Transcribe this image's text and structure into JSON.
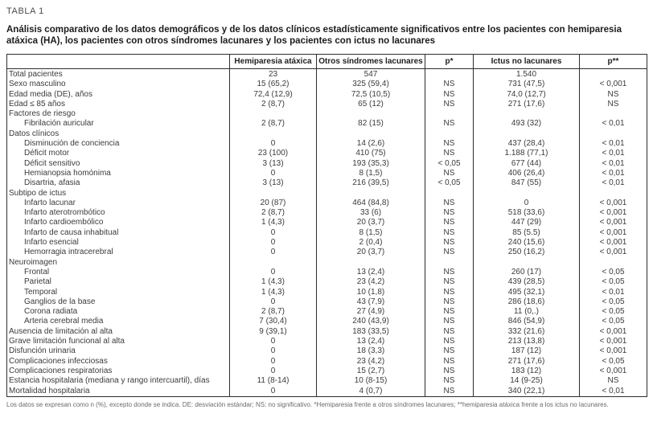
{
  "header": {
    "table_label": "TABLA 1",
    "title": "Análisis comparativo de los datos demográficos y de los datos clínicos estadísticamente significativos entre los pacientes con hemiparesia atáxica (HA), los pacientes con otros síndromes lacunares y los pacientes con ictus no lacunares"
  },
  "table": {
    "columns": [
      "",
      "Hemiparesia atáxica",
      "Otros síndromes lacunares",
      "p*",
      "Ictus no lacunares",
      "p**"
    ],
    "rows": [
      {
        "label": "Total pacientes",
        "indent": false,
        "values": [
          "23",
          "547",
          "",
          "1.540",
          ""
        ]
      },
      {
        "label": "Sexo masculino",
        "indent": false,
        "values": [
          "15 (65,2)",
          "325 (59,4)",
          "NS",
          "731 (47,5)",
          "< 0,001"
        ]
      },
      {
        "label": "Edad media (DE), años",
        "indent": false,
        "values": [
          "72,4 (12,9)",
          "72,5 (10,5)",
          "NS",
          "74,0 (12,7)",
          "NS"
        ]
      },
      {
        "label": "Edad ≤ 85 años",
        "indent": false,
        "values": [
          "2 (8,7)",
          "65 (12)",
          "NS",
          "271 (17,6)",
          "NS"
        ]
      },
      {
        "label": "Factores de riesgo",
        "indent": false,
        "values": [
          "",
          "",
          "",
          "",
          ""
        ]
      },
      {
        "label": "Fibrilación auricular",
        "indent": true,
        "values": [
          "2 (8,7)",
          "82 (15)",
          "NS",
          "493 (32)",
          "< 0,01"
        ]
      },
      {
        "label": "Datos clínicos",
        "indent": false,
        "values": [
          "",
          "",
          "",
          "",
          ""
        ]
      },
      {
        "label": "Disminución de conciencia",
        "indent": true,
        "values": [
          "0",
          "14 (2,6)",
          "NS",
          "437 (28,4)",
          "< 0,01"
        ]
      },
      {
        "label": "Déficit motor",
        "indent": true,
        "values": [
          "23 (100)",
          "410 (75)",
          "NS",
          "1.188 (77,1)",
          "< 0,01"
        ]
      },
      {
        "label": "Déficit sensitivo",
        "indent": true,
        "values": [
          "3 (13)",
          "193 (35,3)",
          "< 0,05",
          "677 (44)",
          "< 0,01"
        ]
      },
      {
        "label": "Hemianopsia homónima",
        "indent": true,
        "values": [
          "0",
          "8 (1,5)",
          "NS",
          "406 (26,4)",
          "< 0,01"
        ]
      },
      {
        "label": "Disartria, afasia",
        "indent": true,
        "values": [
          "3 (13)",
          "216 (39,5)",
          "< 0,05",
          "847 (55)",
          "< 0,01"
        ]
      },
      {
        "label": "Subtipo de ictus",
        "indent": false,
        "values": [
          "",
          "",
          "",
          "",
          ""
        ]
      },
      {
        "label": "Infarto lacunar",
        "indent": true,
        "values": [
          "20 (87)",
          "464 (84,8)",
          "NS",
          "0",
          "< 0,001"
        ]
      },
      {
        "label": "Infarto aterotrombótico",
        "indent": true,
        "values": [
          "2 (8,7)",
          "33 (6)",
          "NS",
          "518 (33,6)",
          "< 0,001"
        ]
      },
      {
        "label": "Infarto cardioembólico",
        "indent": true,
        "values": [
          "1 (4,3)",
          "20 (3,7)",
          "NS",
          "447 (29)",
          "< 0,001"
        ]
      },
      {
        "label": "Infarto de causa inhabitual",
        "indent": true,
        "values": [
          "0",
          "8 (1,5)",
          "NS",
          "85 (5.5)",
          "< 0,001"
        ]
      },
      {
        "label": "Infarto esencial",
        "indent": true,
        "values": [
          "0",
          "2 (0,4)",
          "NS",
          "240 (15,6)",
          "< 0,001"
        ]
      },
      {
        "label": "Hemorragia intracerebral",
        "indent": true,
        "values": [
          "0",
          "20 (3,7)",
          "NS",
          "250 (16,2)",
          "< 0,001"
        ]
      },
      {
        "label": "Neuroimagen",
        "indent": false,
        "values": [
          "",
          "",
          "",
          "",
          ""
        ]
      },
      {
        "label": "Frontal",
        "indent": true,
        "values": [
          "0",
          "13 (2,4)",
          "NS",
          "260 (17)",
          "< 0,05"
        ]
      },
      {
        "label": "Parietal",
        "indent": true,
        "values": [
          "1 (4,3)",
          "23 (4,2)",
          "NS",
          "439 (28,5)",
          "< 0,05"
        ]
      },
      {
        "label": "Temporal",
        "indent": true,
        "values": [
          "1 (4,3)",
          "10 (1,8)",
          "NS",
          "495 (32,1)",
          "< 0,01"
        ]
      },
      {
        "label": "Ganglios de la base",
        "indent": true,
        "values": [
          "0",
          "43 (7,9)",
          "NS",
          "286 (18,6)",
          "< 0,05"
        ]
      },
      {
        "label": "Corona radiata",
        "indent": true,
        "values": [
          "2 (8,7)",
          "27 (4,9)",
          "NS",
          "11 (0,.)",
          "< 0,05"
        ]
      },
      {
        "label": "Arteria cerebral media",
        "indent": true,
        "values": [
          "7 (30,4)",
          "240 (43,9)",
          "NS",
          "846 (54,9)",
          "< 0,05"
        ]
      },
      {
        "label": "Ausencia de limitación al alta",
        "indent": false,
        "values": [
          "9 (39,1)",
          "183 (33,5)",
          "NS",
          "332 (21,6)",
          "< 0,001"
        ]
      },
      {
        "label": "Grave limitación funcional al alta",
        "indent": false,
        "values": [
          "0",
          "13 (2,4)",
          "NS",
          "213 (13,8)",
          "< 0,001"
        ]
      },
      {
        "label": "Disfunción urinaria",
        "indent": false,
        "values": [
          "0",
          "18 (3,3)",
          "NS",
          "187 (12)",
          "< 0,001"
        ]
      },
      {
        "label": "Complicaciones infecciosas",
        "indent": false,
        "values": [
          "0",
          "23 (4,2)",
          "NS",
          "271 (17,6)",
          "< 0,05"
        ]
      },
      {
        "label": "Complicaciones respiratorias",
        "indent": false,
        "values": [
          "0",
          "15 (2,7)",
          "NS",
          "183 (12)",
          "< 0,001"
        ]
      },
      {
        "label": "Estancia hospitalaria (mediana y rango intercuartil), días",
        "indent": false,
        "values": [
          "11 (8-14)",
          "10 (8-15)",
          "NS",
          "14 (9-25)",
          "NS"
        ]
      },
      {
        "label": "Mortalidad hospitalaria",
        "indent": false,
        "values": [
          "0",
          "4 (0,7)",
          "NS",
          "340 (22,1)",
          "< 0,01"
        ]
      }
    ]
  },
  "footnote": {
    "text": "Los datos se expresan como n (%), excepto donde se indica. DE: desviación estándar; NS: no significativo. *Hemiparesia frente a otros síndromes lacunares; **hemiparesia atáxica frente a los ictus no lacunares."
  }
}
